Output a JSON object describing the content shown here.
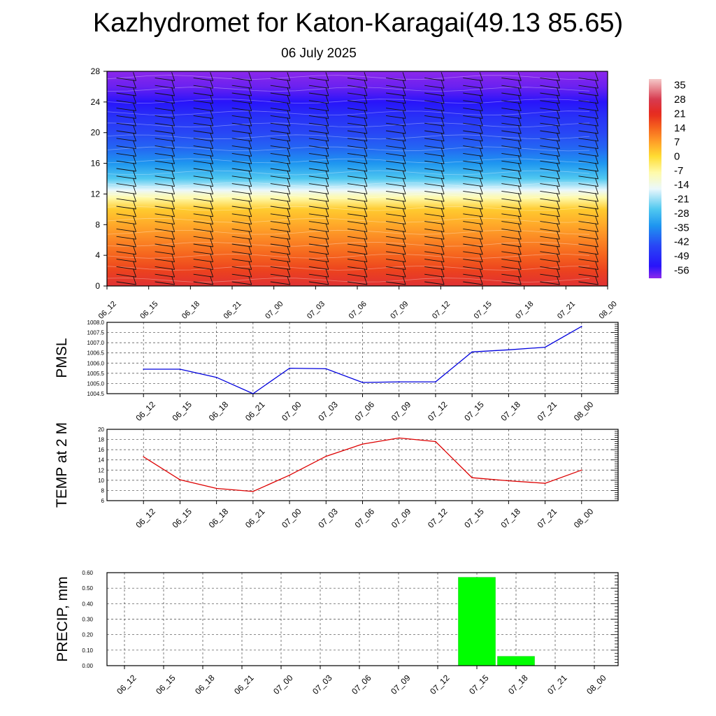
{
  "title": "Kazhydromet for Katon-Karagai(49.13 85.65)",
  "subtitle": "06 July 2025",
  "colors": {
    "pmsl_line": "#0000dd",
    "temp_line": "#dd0000",
    "precip_bar": "#00ff00",
    "grid": "#444444"
  },
  "chart_data": [
    {
      "type": "heatmap",
      "name": "vertical cross-section",
      "x_ticks": [
        "06_12",
        "06_15",
        "06_18",
        "06_21",
        "07_00",
        "07_03",
        "07_06",
        "07_09",
        "07_12",
        "07_15",
        "07_18",
        "07_21",
        "08_00"
      ],
      "y_ticks": [
        "0",
        "4",
        "8",
        "12",
        "16",
        "20",
        "24",
        "28"
      ],
      "ylim": [
        0,
        28
      ],
      "colorbar": {
        "labels": [
          "35",
          "28",
          "21",
          "14",
          "7",
          "0",
          "-7",
          "-14",
          "-21",
          "-28",
          "-35",
          "-42",
          "-49",
          "-56"
        ],
        "range": [
          -60,
          38
        ]
      },
      "temperature_profile": [
        {
          "h": 0,
          "t": 24
        },
        {
          "h": 2,
          "t": 18
        },
        {
          "h": 4,
          "t": 14
        },
        {
          "h": 6,
          "t": 10
        },
        {
          "h": 8,
          "t": 6
        },
        {
          "h": 10,
          "t": 2
        },
        {
          "h": 11.5,
          "t": -8
        },
        {
          "h": 12.5,
          "t": -16
        },
        {
          "h": 14,
          "t": -26
        },
        {
          "h": 16,
          "t": -34
        },
        {
          "h": 18,
          "t": -40
        },
        {
          "h": 20,
          "t": -44
        },
        {
          "h": 22,
          "t": -48
        },
        {
          "h": 24,
          "t": -54
        },
        {
          "h": 26,
          "t": -58
        },
        {
          "h": 28,
          "t": -60
        }
      ]
    },
    {
      "type": "line",
      "ylabel": "PMSL",
      "x": [
        "06_12",
        "06_15",
        "06_18",
        "06_21",
        "07_00",
        "07_03",
        "07_06",
        "07_09",
        "07_12",
        "07_15",
        "07_18",
        "07_21",
        "08_00"
      ],
      "y_ticks": [
        "1004.5",
        "1005.0",
        "1005.5",
        "1006.0",
        "1006.5",
        "1007.0",
        "1007.5",
        "1008.0"
      ],
      "ylim": [
        1004.5,
        1008.0
      ],
      "values": [
        1005.7,
        1005.7,
        1005.3,
        1004.5,
        1005.75,
        1005.72,
        1005.05,
        1005.08,
        1005.08,
        1006.55,
        1006.65,
        1006.78,
        1007.8
      ]
    },
    {
      "type": "line",
      "ylabel": "TEMP at 2 M",
      "x": [
        "06_12",
        "06_15",
        "06_18",
        "06_21",
        "07_00",
        "07_03",
        "07_06",
        "07_09",
        "07_12",
        "07_15",
        "07_18",
        "07_21",
        "08_00"
      ],
      "y_ticks": [
        "6",
        "8",
        "10",
        "12",
        "14",
        "16",
        "18",
        "20"
      ],
      "ylim": [
        6,
        20
      ],
      "values": [
        14.6,
        10.1,
        8.4,
        7.8,
        11.0,
        14.7,
        17.1,
        18.3,
        17.6,
        10.5,
        9.9,
        9.4,
        12.0
      ]
    },
    {
      "type": "bar",
      "ylabel": "PRECIP, mm",
      "categories": [
        "06_12",
        "06_15",
        "06_18",
        "06_21",
        "07_00",
        "07_03",
        "07_06",
        "07_09",
        "07_12",
        "07_15",
        "07_18",
        "07_21",
        "08_00"
      ],
      "y_ticks": [
        "0.00",
        "0.10",
        "0.20",
        "0.30",
        "0.40",
        "0.50",
        "0.60"
      ],
      "ylim": [
        0,
        0.6
      ],
      "values": [
        0,
        0,
        0,
        0,
        0,
        0,
        0,
        0,
        0,
        0.57,
        0.06,
        0,
        0
      ]
    }
  ]
}
